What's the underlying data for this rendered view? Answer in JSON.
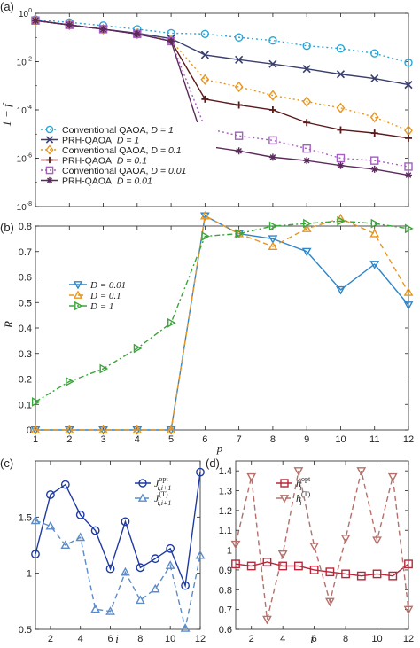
{
  "panels_text": {
    "a": {
      "label": "(a)",
      "ylabel": "1 − f"
    },
    "b": {
      "label": "(b)",
      "ylabel": "R",
      "xlabel": "p"
    },
    "c": {
      "label": "(c)",
      "xlabel": "i"
    },
    "d": {
      "label": "(d)",
      "xlabel": "i"
    }
  },
  "chart_data": [
    {
      "id": "a",
      "type": "line",
      "panel_label": "(a)",
      "xlabel": "",
      "ylabel": "1 − f",
      "xlim": [
        1,
        12
      ],
      "ylim": [
        1e-08,
        1
      ],
      "yscale": "log",
      "grid": false,
      "legend_placement": "bottom-left",
      "yticks": [
        1e-08,
        1e-06,
        0.0001,
        0.01,
        1
      ],
      "ytick_labels": [
        {
          "base": "10",
          "exp": "-8"
        },
        {
          "base": "10",
          "exp": "-6"
        },
        {
          "base": "10",
          "exp": "-4"
        },
        {
          "base": "10",
          "exp": "-2"
        },
        {
          "base": "10",
          "exp": "0"
        }
      ],
      "x": [
        1,
        2,
        3,
        4,
        5,
        6,
        7,
        8,
        9,
        10,
        11,
        12
      ],
      "series": [
        {
          "name": "Conventional QAOA, D = 1",
          "legend_main": "Conventional QAOA, ",
          "legend_var": "D = 1",
          "color": "#2aa7d8",
          "marker": "circle",
          "dash": "2,3",
          "values": [
            0.55,
            0.42,
            0.31,
            0.22,
            0.15,
            0.14,
            0.1,
            0.075,
            0.045,
            0.035,
            0.022,
            0.009
          ]
        },
        {
          "name": "PRH-QAOA, D = 1",
          "legend_main": "PRH-QAOA, ",
          "legend_var": "D = 1",
          "color": "#3a3f6e",
          "marker": "x",
          "dash": "",
          "values": [
            0.5,
            0.33,
            0.22,
            0.15,
            0.09,
            0.019,
            0.012,
            0.008,
            0.005,
            0.003,
            0.002,
            0.0011
          ]
        },
        {
          "name": "Conventional QAOA, D = 0.1",
          "legend_main": "Conventional QAOA, ",
          "legend_var": "D = 0.1",
          "color": "#e8951f",
          "marker": "diamond",
          "dash": "2,3",
          "values": [
            0.5,
            0.33,
            0.22,
            0.14,
            0.075,
            0.0018,
            0.0009,
            0.0004,
            0.00022,
            0.00012,
            5e-05,
            1.4e-05
          ]
        },
        {
          "name": "PRH-QAOA, D = 0.1",
          "legend_main": "PRH-QAOA, ",
          "legend_var": "D = 0.1",
          "color": "#5a1a1a",
          "marker": "plus",
          "dash": "",
          "values": [
            0.5,
            0.33,
            0.22,
            0.14,
            0.07,
            0.00028,
            0.00016,
            0.0001,
            3e-05,
            1.5e-05,
            1.1e-05,
            6.8e-06
          ]
        },
        {
          "name": "Conventional QAOA, D = 0.01",
          "legend_main": "Conventional QAOA, ",
          "legend_var": "D = 0.01",
          "color": "#a45fc0",
          "marker": "square",
          "dash": "2,3",
          "values": [
            0.5,
            0.33,
            0.22,
            0.14,
            0.07,
            1.8e-05,
            8.5e-06,
            5.5e-06,
            2.5e-06,
            1e-06,
            8e-07,
            4.5e-07
          ]
        },
        {
          "name": "PRH-QAOA, D = 0.01",
          "legend_main": "PRH-QAOA, ",
          "legend_var": "D = 0.01",
          "color": "#5b2a5c",
          "marker": "asterisk",
          "dash": "",
          "values": [
            0.5,
            0.33,
            0.22,
            0.14,
            0.07,
            3.2e-06,
            2e-06,
            1.1e-06,
            8e-07,
            5e-07,
            3.5e-07,
            2e-07
          ]
        }
      ]
    },
    {
      "id": "b",
      "type": "line",
      "panel_label": "(b)",
      "xlabel": "p",
      "ylabel": "R",
      "xlim": [
        1,
        12
      ],
      "ylim": [
        0,
        0.8
      ],
      "grid": false,
      "legend_placement": "center-left",
      "yticks": [
        0,
        0.1,
        0.2,
        0.3,
        0.4,
        0.5,
        0.6,
        0.7,
        0.8
      ],
      "ytick_labels": [
        "0",
        "0.1",
        "0.2",
        "0.3",
        "0.4",
        "0.5",
        "0.6",
        "0.7",
        "0.8"
      ],
      "xticks": [
        1,
        2,
        3,
        4,
        5,
        6,
        7,
        8,
        9,
        10,
        11,
        12
      ],
      "xtick_labels": [
        "1",
        "2",
        "3",
        "4",
        "5",
        "6",
        "7",
        "8",
        "9",
        "10",
        "11",
        "12"
      ],
      "x": [
        1,
        2,
        3,
        4,
        5,
        6,
        7,
        8,
        9,
        10,
        11,
        12
      ],
      "series": [
        {
          "name": "D = 0.01",
          "legend_var": "D = 0.01",
          "color": "#2f86c8",
          "marker": "triangle-down",
          "dash": "",
          "values": [
            0,
            0,
            0,
            0,
            0,
            0.84,
            0.77,
            0.75,
            0.7,
            0.55,
            0.65,
            0.49
          ]
        },
        {
          "name": "D = 0.1",
          "legend_var": "D = 0.1",
          "color": "#e8951f",
          "marker": "triangle-up",
          "dash": "6,4",
          "values": [
            0,
            0,
            0,
            0,
            0,
            0.84,
            0.77,
            0.72,
            0.79,
            0.83,
            0.77,
            0.54
          ]
        },
        {
          "name": "D = 1",
          "legend_var": "D = 1",
          "color": "#3aa53a",
          "marker": "triangle-right",
          "dash": "6,3,2,3",
          "values": [
            0.11,
            0.19,
            0.24,
            0.32,
            0.42,
            0.76,
            0.77,
            0.8,
            0.81,
            0.82,
            0.81,
            0.79
          ]
        }
      ]
    },
    {
      "id": "c",
      "type": "line",
      "panel_label": "(c)",
      "xlabel": "i",
      "ylabel": "",
      "xlim": [
        1,
        12
      ],
      "ylim": [
        0.5,
        2.0
      ],
      "grid": false,
      "legend_placement": "top-right",
      "yticks": [
        0.5,
        1,
        1.5
      ],
      "ytick_labels": [
        "0.5",
        "1",
        "1.5"
      ],
      "xticks": [
        2,
        4,
        6,
        8,
        10,
        12
      ],
      "xtick_labels": [
        "2",
        "4",
        "6",
        "8",
        "10",
        "12"
      ],
      "x": [
        1,
        2,
        3,
        4,
        5,
        6,
        7,
        8,
        9,
        10,
        11,
        12
      ],
      "series": [
        {
          "name": "J opt i,i+1",
          "legend_base": "J",
          "legend_sup": "opt",
          "legend_sub": "i,i+1",
          "color": "#1f3aa0",
          "marker": "circle",
          "dash": "",
          "values": [
            1.17,
            1.7,
            1.79,
            1.52,
            1.38,
            1.04,
            1.46,
            1.05,
            1.13,
            1.22,
            0.89,
            1.9
          ]
        },
        {
          "name": "J (T) i,i+1",
          "legend_base": "J",
          "legend_sup": "(T)",
          "legend_sub": "i,i+1",
          "color": "#5b8cc8",
          "marker": "triangle-up",
          "dash": "6,4",
          "values": [
            1.47,
            1.42,
            1.25,
            1.32,
            0.68,
            0.66,
            1.01,
            0.76,
            0.86,
            1.07,
            0.51,
            1.16
          ]
        }
      ]
    },
    {
      "id": "d",
      "type": "line",
      "panel_label": "(d)",
      "xlabel": "i",
      "ylabel": "",
      "xlim": [
        1,
        12
      ],
      "ylim": [
        0.6,
        1.45
      ],
      "grid": false,
      "legend_placement": "top-left",
      "yticks": [
        0.6,
        0.7,
        0.8,
        0.9,
        1.0,
        1.1,
        1.2,
        1.3,
        1.4
      ],
      "ytick_labels": [
        "0.6",
        "0.7",
        "0.8",
        "0.9",
        "1",
        "1.1",
        "1.2",
        "1.3",
        "1.4"
      ],
      "xticks": [
        2,
        4,
        6,
        8,
        10,
        12
      ],
      "xtick_labels": [
        "2",
        "4",
        "6",
        "8",
        "10",
        "12"
      ],
      "x": [
        1,
        2,
        3,
        4,
        5,
        6,
        7,
        8,
        9,
        10,
        11,
        12
      ],
      "series": [
        {
          "name": "h opt i",
          "legend_base": "h",
          "legend_sup": "opt",
          "legend_sub": "i",
          "color": "#b5283a",
          "marker": "square",
          "dash": "",
          "values": [
            0.93,
            0.92,
            0.94,
            0.92,
            0.92,
            0.9,
            0.89,
            0.88,
            0.87,
            0.88,
            0.87,
            0.93
          ]
        },
        {
          "name": "h (T) i",
          "legend_base": "h",
          "legend_sup": "(T)",
          "legend_sub": "i",
          "color": "#b5706a",
          "marker": "triangle-down",
          "dash": "6,4",
          "values": [
            1.03,
            1.37,
            0.65,
            0.98,
            1.4,
            1.02,
            0.74,
            1.06,
            1.4,
            1.05,
            1.37,
            0.7
          ]
        }
      ]
    }
  ]
}
